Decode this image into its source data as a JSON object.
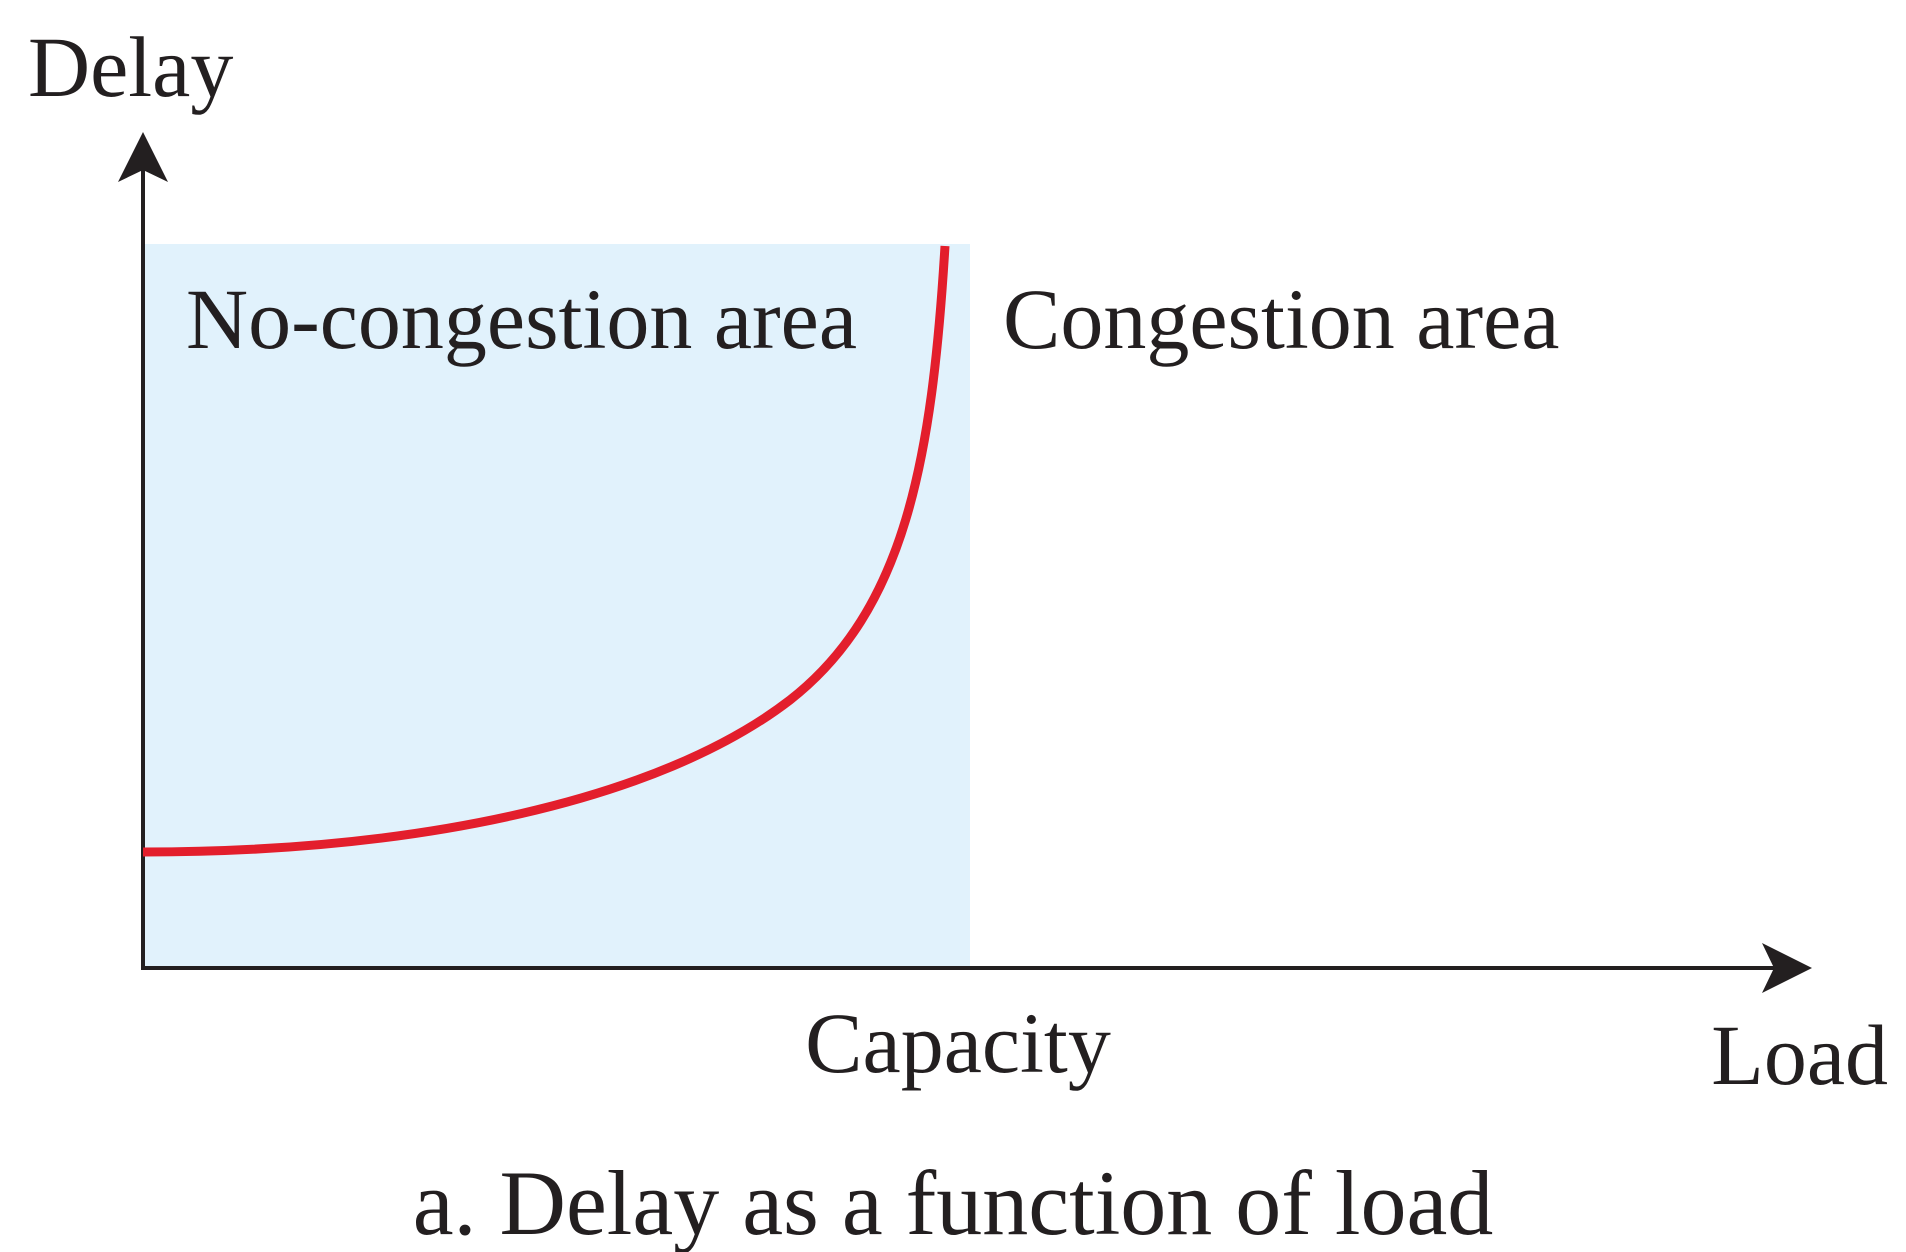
{
  "diagram": {
    "y_axis_label": "Delay",
    "x_axis_label": "Load",
    "capacity_label": "Capacity",
    "left_region_label": "No-congestion area",
    "right_region_label": "Congestion area",
    "caption": "a. Delay as a function of load"
  },
  "colors": {
    "no_congestion_fill": "#e1f2fc",
    "curve": "#e31e2c",
    "axes": "#231f20",
    "text": "#231f20"
  }
}
